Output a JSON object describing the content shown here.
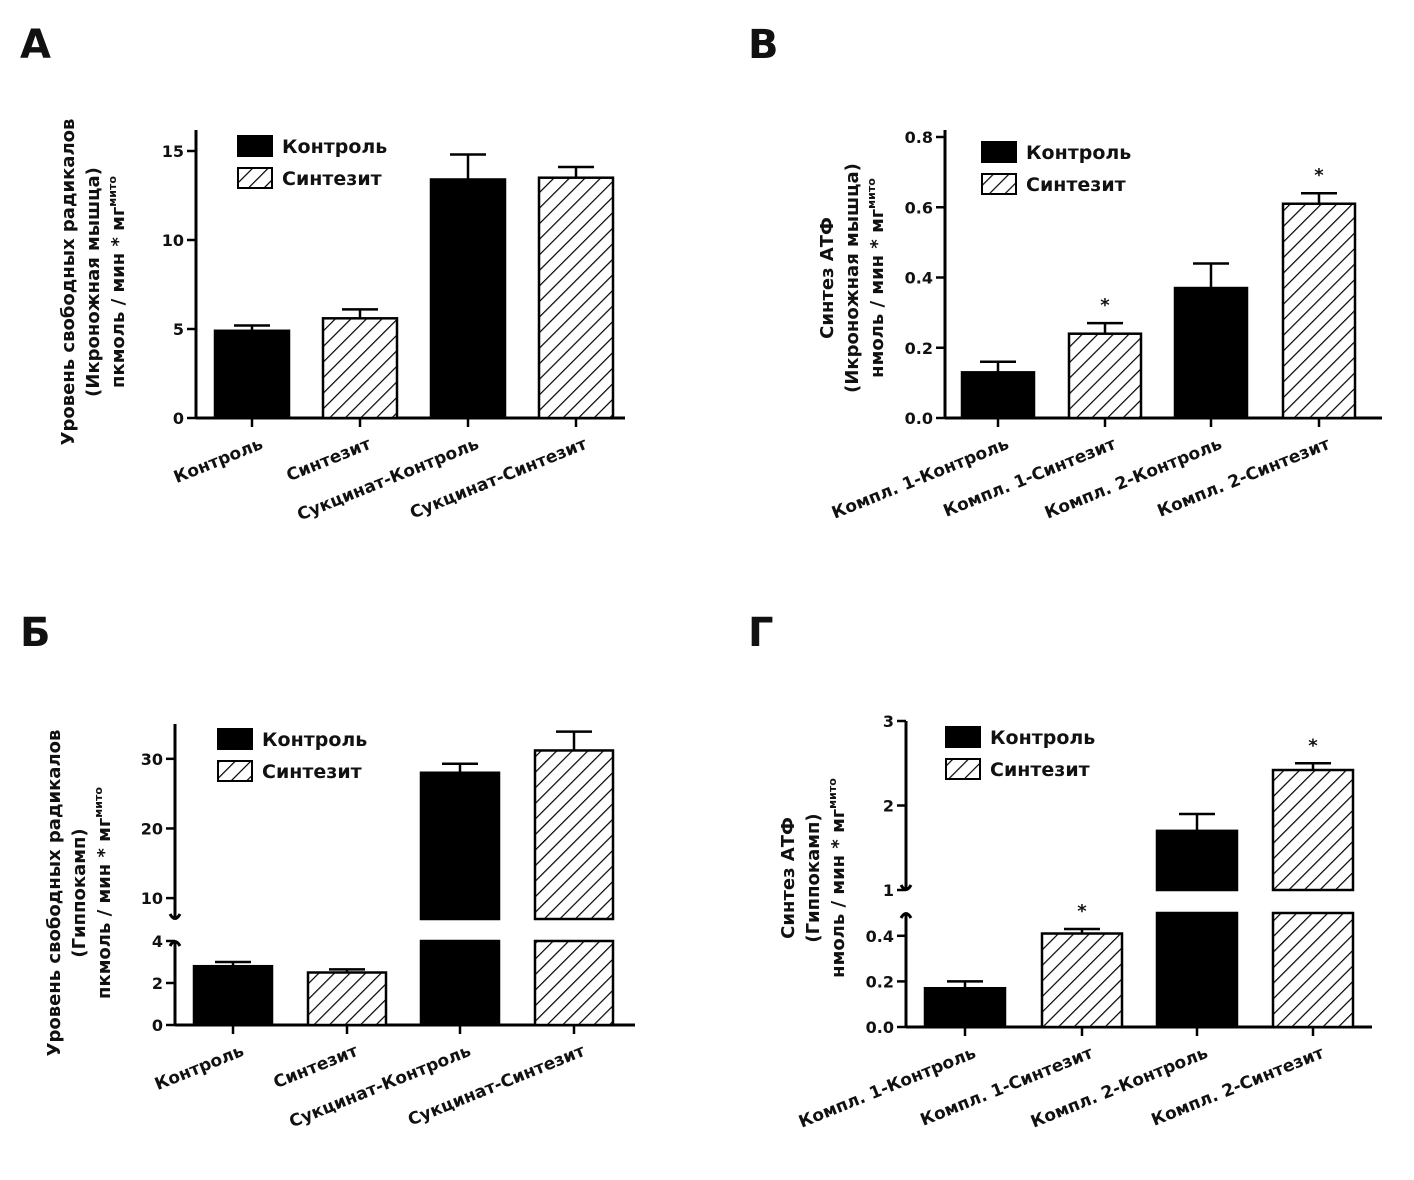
{
  "legend_labels": {
    "control": "Контроль",
    "synthesit": "Синтезит"
  },
  "colors": {
    "control": "#000000",
    "synthesit_hatch": "#000000",
    "background": "#ffffff"
  },
  "chart_data": [
    {
      "panel": "А",
      "type": "bar",
      "categories": [
        "Контроль",
        "Синтезит",
        "Сукцинат-Контроль",
        "Сукцинат-Синтезит"
      ],
      "fill": [
        "solid",
        "hatched",
        "solid",
        "hatched"
      ],
      "values": [
        4.9,
        5.6,
        13.4,
        13.5
      ],
      "errors": [
        0.3,
        0.5,
        1.4,
        0.6
      ],
      "significant": [
        false,
        false,
        false,
        false
      ],
      "yticks": [
        "0",
        "5",
        "10",
        "15"
      ],
      "ylim": [
        0,
        16
      ],
      "ylabel_lines": [
        "Уровень свободных радикалов",
        "(Икроножная мышца)",
        "пкмоль / мин * мг"
      ],
      "ylabel_sup": "мито",
      "legend": [
        "Контроль",
        "Синтезит"
      ],
      "legend_position": "top-left"
    },
    {
      "panel": "В",
      "type": "bar",
      "categories": [
        "Компл. 1-Контроль",
        "Компл. 1-Синтезит",
        "Компл. 2-Контроль",
        "Компл. 2-Синтезит"
      ],
      "fill": [
        "solid",
        "hatched",
        "solid",
        "hatched"
      ],
      "values": [
        0.13,
        0.24,
        0.37,
        0.61
      ],
      "errors": [
        0.03,
        0.03,
        0.07,
        0.03
      ],
      "significant": [
        false,
        true,
        false,
        true
      ],
      "yticks": [
        "0.0",
        "0.2",
        "0.4",
        "0.6",
        "0.8"
      ],
      "ylim": [
        0,
        0.8
      ],
      "ylabel_lines": [
        "Синтез АТФ",
        "(Икроножная мышца)",
        "нмоль / мин * мг"
      ],
      "ylabel_sup": "мито",
      "legend": [
        "Контроль",
        "Синтезит"
      ],
      "legend_position": "top-left"
    },
    {
      "panel": "Б",
      "type": "bar",
      "categories": [
        "Контроль",
        "Синтезит",
        "Сукцинат-Контроль",
        "Сукцинат-Синтезит"
      ],
      "fill": [
        "solid",
        "hatched",
        "solid",
        "hatched"
      ],
      "values": [
        2.8,
        2.5,
        28.0,
        31.2
      ],
      "errors": [
        0.2,
        0.15,
        1.3,
        2.7
      ],
      "significant": [
        false,
        false,
        false,
        false
      ],
      "yticks_lower": [
        "0",
        "2",
        "4"
      ],
      "yticks_upper": [
        "10",
        "20",
        "30"
      ],
      "axis_break": [
        4,
        7
      ],
      "ylim": [
        0,
        35
      ],
      "ylabel_lines": [
        "Уровень свободных радикалов",
        "(Гиппокамп)",
        "пкмоль / мин * мг"
      ],
      "ylabel_sup": "мито",
      "legend": [
        "Контроль",
        "Синтезит"
      ],
      "legend_position": "top-left"
    },
    {
      "panel": "Г",
      "type": "bar",
      "categories": [
        "Компл. 1-Контроль",
        "Компл. 1-Синтезит",
        "Компл. 2-Контроль",
        "Компл. 2-Синтезит"
      ],
      "fill": [
        "solid",
        "hatched",
        "solid",
        "hatched"
      ],
      "values": [
        0.17,
        0.41,
        1.7,
        2.42
      ],
      "errors": [
        0.03,
        0.02,
        0.2,
        0.08
      ],
      "significant": [
        false,
        true,
        false,
        true
      ],
      "yticks_lower": [
        "0.0",
        "0.2",
        "0.4"
      ],
      "yticks_upper": [
        "1",
        "2",
        "3"
      ],
      "axis_break": [
        0.5,
        1
      ],
      "ylim": [
        0,
        3
      ],
      "ylabel_lines": [
        "Синтез АТФ",
        "(Гиппокамп)",
        "нмоль / мин * мг"
      ],
      "ylabel_sup": "мито",
      "legend": [
        "Контроль",
        "Синтезит"
      ],
      "legend_position": "top-left"
    }
  ],
  "significance_marker": "*"
}
